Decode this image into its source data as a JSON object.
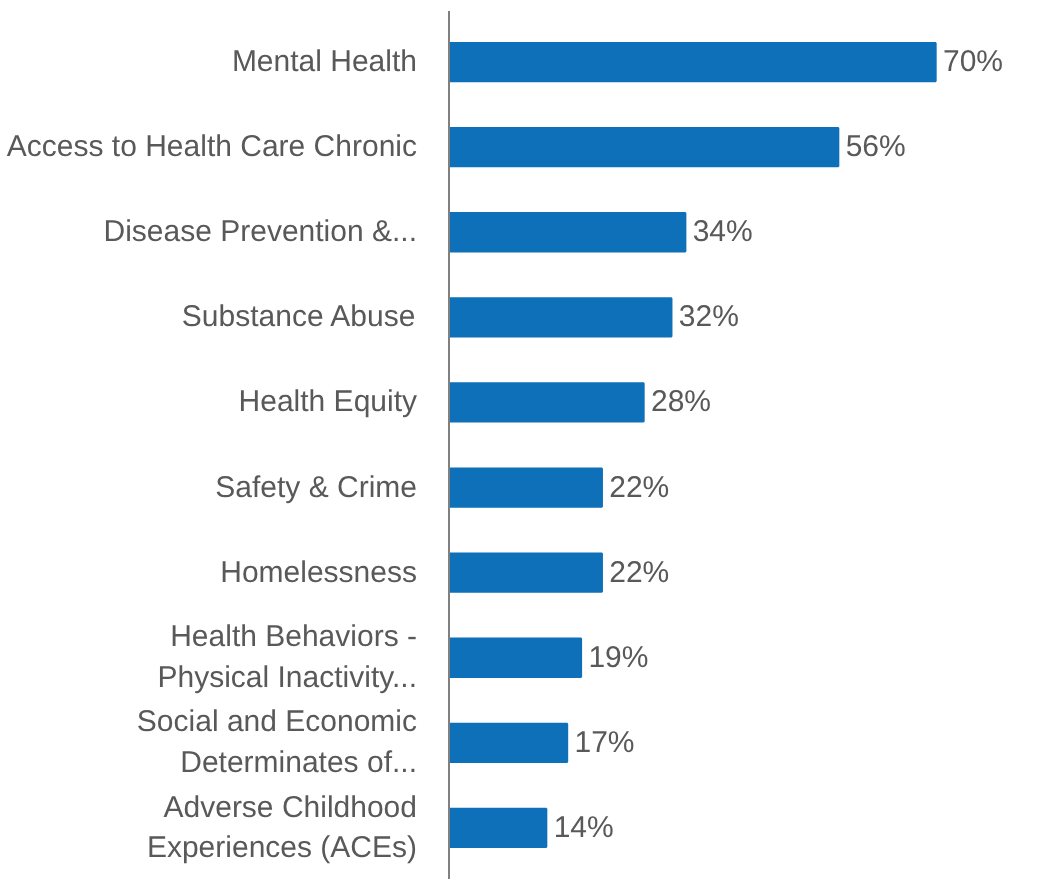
{
  "chart_data": {
    "type": "bar",
    "orientation": "horizontal",
    "categories": [
      "Mental Health",
      "Access to Health Care Chronic",
      "Disease Prevention &...",
      "Substance Abuse",
      "Health Equity",
      "Safety & Crime",
      "Homelessness",
      "Health Behaviors -\nPhysical Inactivity...",
      "Social and Economic\nDeterminates of...",
      "Adverse Childhood\nExperiences (ACEs)"
    ],
    "values": [
      70,
      56,
      34,
      32,
      28,
      22,
      22,
      19,
      17,
      14
    ],
    "value_labels": [
      "70%",
      "56%",
      "34%",
      "32%",
      "28%",
      "22%",
      "22%",
      "19%",
      "17%",
      "14%"
    ],
    "color": "#0e70b8"
  }
}
